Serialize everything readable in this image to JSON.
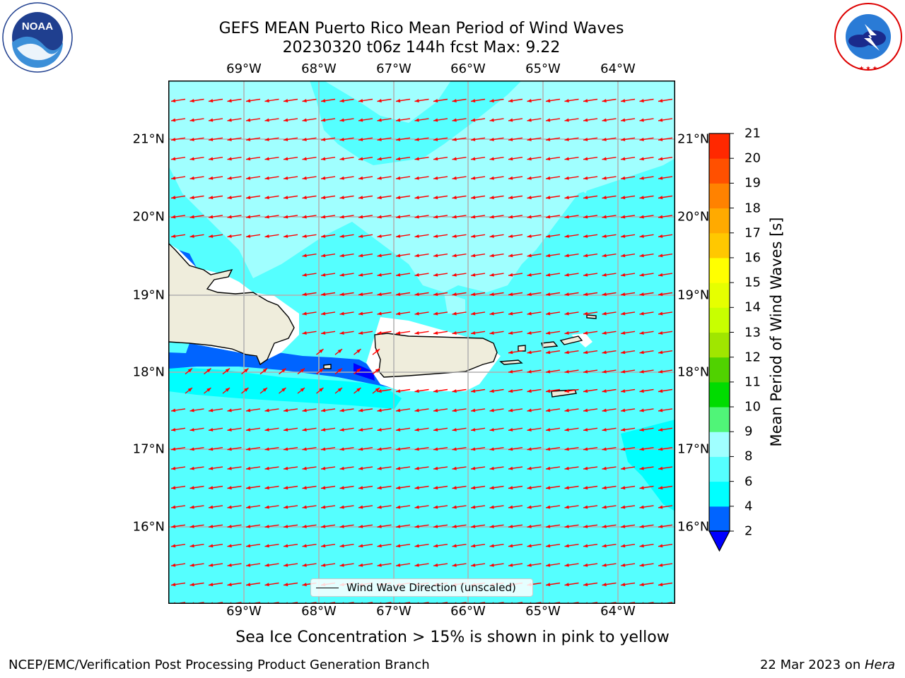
{
  "header": {
    "title_line1": "GEFS MEAN Puerto Rico Mean Period of Wind Waves",
    "title_line2": "20230320 t06z 144h fcst   Max: 9.22"
  },
  "logos": {
    "left": "NOAA",
    "left_ring_text": "NATIONAL OCEANIC AND ATMOSPHERIC ADMINISTRATION · U.S. DEPARTMENT OF COMMERCE",
    "right_ring_text": "NATIONAL WEATHER SERVICE"
  },
  "map": {
    "lon_ticks": [
      "69°W",
      "68°W",
      "67°W",
      "66°W",
      "65°W",
      "64°W"
    ],
    "lat_ticks": [
      "21°N",
      "20°N",
      "19°N",
      "18°N",
      "17°N",
      "16°N"
    ],
    "legend_label": "Wind Wave Direction (unscaled)",
    "ocean_color": "#55ffff",
    "light_color": "#a0ffff",
    "land_color": "#efeddc",
    "arrow_color": "#ff0000"
  },
  "colorbar": {
    "label": "Mean Period of Wind Waves [s]",
    "ticks": [
      "2",
      "4",
      "6",
      "8",
      "9",
      "10",
      "11",
      "12",
      "13",
      "14",
      "15",
      "16",
      "17",
      "18",
      "19",
      "20",
      "21"
    ],
    "colors": [
      "#0064ff",
      "#00ffff",
      "#55ffff",
      "#a0ffff",
      "#50f578",
      "#00dc00",
      "#50d200",
      "#a0e600",
      "#c8ff00",
      "#e6ff00",
      "#ffff00",
      "#ffc800",
      "#ffaa00",
      "#ff8200",
      "#ff5000",
      "#ff2800",
      "#ff0000"
    ],
    "extend_color": "#0000ff"
  },
  "footer": {
    "subtitle": "Sea Ice Concentration > 15% is shown in pink to yellow",
    "left": "NCEP/EMC/Verification Post Processing Product Generation Branch",
    "right_prefix": "22 Mar 2023 on ",
    "right_host": "Hera"
  }
}
